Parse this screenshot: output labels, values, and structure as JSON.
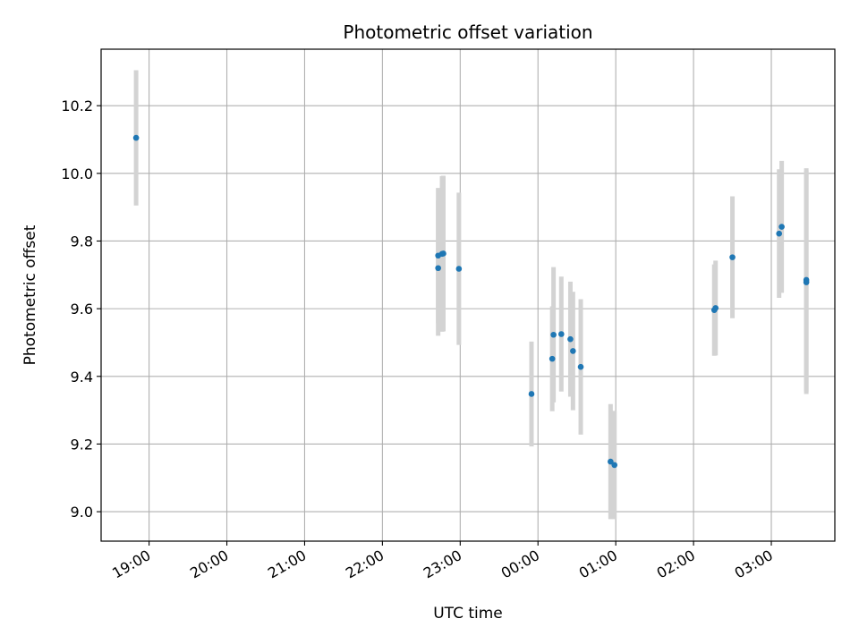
{
  "chart_data": {
    "type": "scatter",
    "title": "Photometric offset variation",
    "xlabel": "UTC time",
    "ylabel": "Photometric offset",
    "x_tick_labels": [
      "19:00",
      "20:00",
      "21:00",
      "22:00",
      "23:00",
      "00:00",
      "01:00",
      "02:00",
      "03:00"
    ],
    "y_ticks": [
      9.0,
      9.2,
      9.4,
      9.6,
      9.8,
      10.0,
      10.2
    ],
    "y_tick_labels": [
      "9.0",
      "9.2",
      "9.4",
      "9.6",
      "9.8",
      "10.0",
      "10.2"
    ],
    "xlim": [
      "18:23",
      "03:49"
    ],
    "ylim": [
      8.913,
      10.367
    ],
    "grid": true,
    "colors": {
      "point": "#1f77b4",
      "errorbar": "#d3d3d3",
      "grid": "#b0b0b0"
    },
    "points": [
      {
        "x": "18:50",
        "y": 10.105,
        "err": 0.2
      },
      {
        "x": "22:43",
        "y": 9.757,
        "err": 0.2
      },
      {
        "x": "22:43",
        "y": 9.72,
        "err": 0.2
      },
      {
        "x": "22:46",
        "y": 9.762,
        "err": 0.23
      },
      {
        "x": "22:47",
        "y": 9.763,
        "err": 0.23
      },
      {
        "x": "22:59",
        "y": 9.718,
        "err": 0.225
      },
      {
        "x": "23:55",
        "y": 9.348,
        "err": 0.155
      },
      {
        "x": "00:11",
        "y": 9.452,
        "err": 0.155
      },
      {
        "x": "00:12",
        "y": 9.523,
        "err": 0.2
      },
      {
        "x": "00:18",
        "y": 9.525,
        "err": 0.17
      },
      {
        "x": "00:25",
        "y": 9.51,
        "err": 0.17
      },
      {
        "x": "00:27",
        "y": 9.475,
        "err": 0.175
      },
      {
        "x": "00:33",
        "y": 9.428,
        "err": 0.2
      },
      {
        "x": "00:56",
        "y": 9.148,
        "err": 0.17
      },
      {
        "x": "00:59",
        "y": 9.138,
        "err": 0.16
      },
      {
        "x": "02:16",
        "y": 9.596,
        "err": 0.135
      },
      {
        "x": "02:17",
        "y": 9.602,
        "err": 0.14
      },
      {
        "x": "02:30",
        "y": 9.752,
        "err": 0.18
      },
      {
        "x": "03:06",
        "y": 9.822,
        "err": 0.19
      },
      {
        "x": "03:08",
        "y": 9.842,
        "err": 0.195
      },
      {
        "x": "03:27",
        "y": 9.685,
        "err": 0.33
      },
      {
        "x": "03:27",
        "y": 9.678,
        "err": 0.33
      }
    ]
  }
}
